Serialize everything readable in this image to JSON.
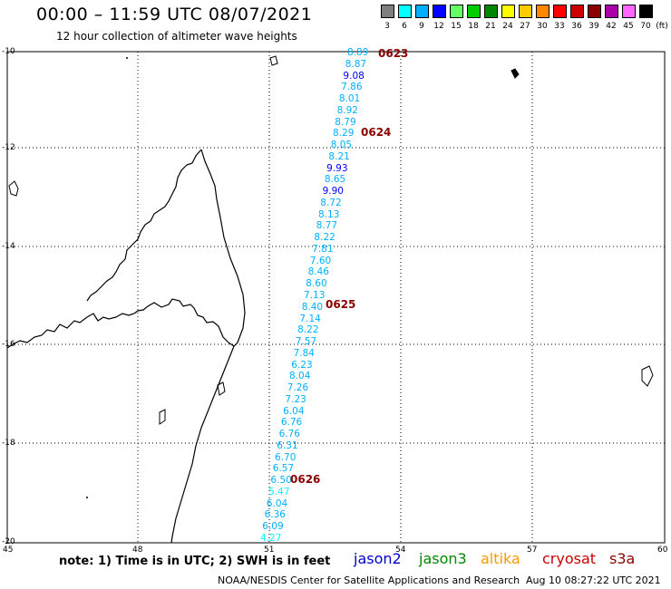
{
  "header": {
    "title": "00:00 – 11:59 UTC 08/07/2021",
    "subtitle": "12 hour collection of altimeter wave heights"
  },
  "color_scale": {
    "unit_label": "(ft)",
    "bins": [
      {
        "label": "3",
        "color": "#7f7f7f"
      },
      {
        "label": "6",
        "color": "#00ffff"
      },
      {
        "label": "9",
        "color": "#00b0ff"
      },
      {
        "label": "12",
        "color": "#0000ff"
      },
      {
        "label": "15",
        "color": "#66ff66"
      },
      {
        "label": "18",
        "color": "#00cc00"
      },
      {
        "label": "21",
        "color": "#008800"
      },
      {
        "label": "24",
        "color": "#ffff00"
      },
      {
        "label": "27",
        "color": "#ffcc00"
      },
      {
        "label": "30",
        "color": "#ff8800"
      },
      {
        "label": "33",
        "color": "#ff0000"
      },
      {
        "label": "36",
        "color": "#cc0000"
      },
      {
        "label": "39",
        "color": "#880000"
      },
      {
        "label": "42",
        "color": "#aa00aa"
      },
      {
        "label": "45",
        "color": "#ff66ff"
      },
      {
        "label": "70",
        "color": "#000000"
      }
    ]
  },
  "map": {
    "lat_labels": [
      "-10",
      "-12",
      "-14",
      "-16",
      "-18",
      "-20"
    ],
    "lon_labels": [
      "45",
      "48",
      "51",
      "54",
      "57",
      "60"
    ],
    "swh_values": [
      "8.89",
      "8.87",
      "9.08",
      "7.86",
      "8.01",
      "8.92",
      "8.79",
      "8.29",
      "8.05",
      "8.21",
      "9.93",
      "8.65",
      "9.90",
      "8.72",
      "8.13",
      "8.77",
      "8.22",
      "7.81",
      "7.60",
      "8.46",
      "8.60",
      "7.13",
      "8.40",
      "7.14",
      "8.22",
      "7.57",
      "7.84",
      "6.23",
      "8.04",
      "7.26",
      "7.23",
      "6.04",
      "6.76",
      "6.76",
      "6.31",
      "6.70",
      "6.57",
      "6.50",
      "5.47",
      "6.04",
      "6.36",
      "6.09",
      "4.27"
    ],
    "time_markers": [
      "0623",
      "0624",
      "0625",
      "0626"
    ]
  },
  "footer": {
    "note": "note: 1) Time is in UTC; 2) SWH is in feet",
    "missions": [
      {
        "label": "jason2",
        "color": "#0000cc"
      },
      {
        "label": "jason3",
        "color": "#008800"
      },
      {
        "label": "altika",
        "color": "#ff9900"
      },
      {
        "label": "cryosat",
        "color": "#cc0000"
      },
      {
        "label": "s3a",
        "color": "#8b0000"
      }
    ],
    "credit": "NOAA/NESDIS Center for Satellite Applications and Research",
    "timestamp": "Aug 10 08:27:22 UTC 2021"
  }
}
